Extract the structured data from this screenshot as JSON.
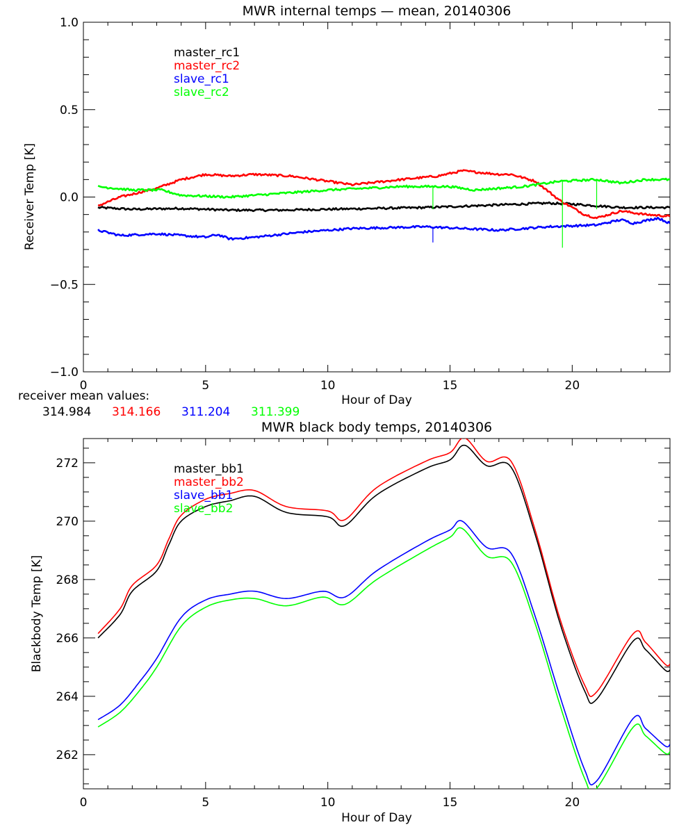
{
  "chart_data": [
    {
      "type": "line",
      "title": "MWR internal temps — mean, 20140306",
      "xlabel": "Hour of Day",
      "ylabel": "Receiver Temp [K]",
      "xlim": [
        0,
        24
      ],
      "ylim": [
        -1.0,
        1.0
      ],
      "xticks": [
        0,
        5,
        10,
        15,
        20
      ],
      "xtick_labels": [
        "0",
        "5",
        "10",
        "15",
        "20"
      ],
      "x_minor_step": 1,
      "yticks": [
        -1.0,
        -0.5,
        0.0,
        0.5,
        1.0
      ],
      "ytick_labels": [
        "−1.0",
        "−0.5",
        "0.0",
        "0.5",
        "1.0"
      ],
      "y_minor_step": 0.1,
      "grid": false,
      "legend_position": "top-left",
      "series": [
        {
          "name": "master_rc1",
          "color": "#000000",
          "x": [
            0.6,
            2,
            4,
            6,
            8,
            10,
            12,
            14,
            16,
            18,
            19,
            20,
            21,
            22,
            23,
            24
          ],
          "y": [
            -0.06,
            -0.07,
            -0.065,
            -0.075,
            -0.075,
            -0.07,
            -0.065,
            -0.06,
            -0.05,
            -0.04,
            -0.035,
            -0.04,
            -0.05,
            -0.06,
            -0.06,
            -0.06
          ]
        },
        {
          "name": "master_rc2",
          "color": "#ff0000",
          "x": [
            0.6,
            1.5,
            3,
            4,
            5,
            6,
            7,
            8.5,
            10.5,
            11,
            13,
            14.5,
            15.5,
            17,
            17.5,
            18.5,
            19.5,
            20.5,
            21,
            22,
            23,
            24
          ],
          "y": [
            -0.05,
            0.0,
            0.05,
            0.1,
            0.13,
            0.12,
            0.13,
            0.12,
            0.08,
            0.07,
            0.1,
            0.12,
            0.15,
            0.13,
            0.13,
            0.09,
            -0.02,
            -0.1,
            -0.12,
            -0.08,
            -0.1,
            -0.11
          ]
        },
        {
          "name": "slave_rc1",
          "color": "#0000ff",
          "x": [
            0.6,
            1.5,
            3,
            4,
            5,
            5.5,
            6,
            7,
            9,
            11,
            14,
            17,
            19,
            21,
            22,
            22.5,
            23.5,
            24
          ],
          "y": [
            -0.19,
            -0.22,
            -0.21,
            -0.22,
            -0.23,
            -0.215,
            -0.24,
            -0.23,
            -0.2,
            -0.18,
            -0.17,
            -0.19,
            -0.17,
            -0.16,
            -0.13,
            -0.15,
            -0.12,
            -0.15
          ]
        },
        {
          "name": "slave_rc2",
          "color": "#00ff00",
          "x": [
            0.6,
            2,
            3.2,
            4,
            6,
            8,
            10,
            13,
            15,
            16,
            18,
            19.5,
            21,
            22,
            23,
            24
          ],
          "y": [
            0.06,
            0.04,
            0.04,
            0.01,
            0.0,
            0.02,
            0.04,
            0.06,
            0.06,
            0.04,
            0.06,
            0.09,
            0.1,
            0.08,
            0.1,
            0.1
          ]
        }
      ],
      "spikes": [
        {
          "series": "slave_rc1",
          "x": 14.3,
          "y_from": -0.17,
          "y_to": -0.26
        },
        {
          "series": "slave_rc2",
          "x": 14.3,
          "y_from": 0.06,
          "y_to": -0.07
        },
        {
          "series": "slave_rc2",
          "x": 19.6,
          "y_from": 0.09,
          "y_to": -0.29
        },
        {
          "series": "slave_rc2",
          "x": 21.0,
          "y_from": 0.1,
          "y_to": -0.07
        }
      ],
      "annotation": {
        "label": "receiver mean values:",
        "values": [
          {
            "text": "314.984",
            "color": "#000000"
          },
          {
            "text": "314.166",
            "color": "#ff0000"
          },
          {
            "text": "311.204",
            "color": "#0000ff"
          },
          {
            "text": "311.399",
            "color": "#00ff00"
          }
        ]
      }
    },
    {
      "type": "line",
      "title": "MWR black body temps, 20140306",
      "xlabel": "Hour of Day",
      "ylabel": "Blackbody Temp [K]",
      "xlim": [
        0,
        24
      ],
      "ylim": [
        260.83,
        272.83
      ],
      "xticks": [
        0,
        5,
        10,
        15,
        20
      ],
      "xtick_labels": [
        "0",
        "5",
        "10",
        "15",
        "20"
      ],
      "x_minor_step": 1,
      "yticks": [
        262,
        264,
        266,
        268,
        270,
        272
      ],
      "ytick_labels": [
        "262",
        "264",
        "266",
        "268",
        "270",
        "272"
      ],
      "y_minor_step": 0.5,
      "grid": false,
      "legend_position": "top-left",
      "series": [
        {
          "name": "master_bb1",
          "color": "#000000",
          "x": [
            0.6,
            1.5,
            2,
            3,
            3.5,
            4,
            5,
            6,
            7,
            8.3,
            10,
            10.7,
            12,
            14,
            15,
            15.6,
            16.5,
            17.5,
            18.5,
            19.5,
            20.5,
            21,
            22.5,
            23,
            23.8,
            24
          ],
          "y": [
            266.0,
            266.8,
            267.6,
            268.3,
            269.2,
            270.0,
            270.5,
            270.7,
            270.85,
            270.3,
            270.15,
            269.85,
            270.9,
            271.8,
            272.1,
            272.6,
            271.9,
            271.85,
            269.5,
            266.5,
            264.2,
            263.9,
            265.9,
            265.6,
            264.9,
            264.9
          ]
        },
        {
          "name": "master_bb2",
          "color": "#ff0000",
          "x": [
            0.6,
            1.5,
            2,
            3,
            3.5,
            4,
            5,
            6,
            7,
            8.3,
            10,
            10.7,
            12,
            14,
            15,
            15.6,
            16.5,
            17.5,
            18.5,
            19.5,
            20.5,
            21,
            22.5,
            23,
            23.8,
            24
          ],
          "y": [
            266.15,
            267.0,
            267.8,
            268.5,
            269.4,
            270.2,
            270.75,
            270.95,
            271.05,
            270.5,
            270.35,
            270.05,
            271.15,
            272.05,
            272.35,
            272.85,
            272.05,
            272.05,
            269.65,
            266.65,
            264.4,
            264.15,
            266.15,
            265.85,
            265.1,
            265.1
          ]
        },
        {
          "name": "slave_bb1",
          "color": "#0000ff",
          "x": [
            0.6,
            1.5,
            2.3,
            3,
            4,
            5,
            6,
            7,
            8.3,
            9.8,
            10.7,
            12,
            14,
            15,
            15.5,
            16.5,
            17.5,
            18.5,
            19.5,
            20.5,
            21,
            22.5,
            23,
            23.8,
            24
          ],
          "y": [
            263.2,
            263.7,
            264.5,
            265.3,
            266.7,
            267.3,
            267.5,
            267.6,
            267.35,
            267.6,
            267.4,
            268.3,
            269.3,
            269.7,
            270.0,
            269.1,
            268.9,
            266.7,
            264.0,
            261.5,
            261.1,
            263.25,
            262.9,
            262.3,
            262.35
          ]
        },
        {
          "name": "slave_bb2",
          "color": "#00ff00",
          "x": [
            0.6,
            1.5,
            2.3,
            3,
            4,
            5,
            6,
            7,
            8.3,
            9.8,
            10.7,
            12,
            14,
            15,
            15.5,
            16.5,
            17.5,
            18.5,
            19.5,
            20.5,
            21,
            22.5,
            23,
            23.8,
            24
          ],
          "y": [
            262.95,
            263.45,
            264.2,
            265.0,
            266.4,
            267.05,
            267.3,
            267.35,
            267.1,
            267.4,
            267.15,
            268.0,
            269.0,
            269.45,
            269.75,
            268.8,
            268.6,
            266.45,
            263.7,
            261.2,
            260.85,
            262.95,
            262.65,
            262.05,
            262.1
          ]
        }
      ]
    }
  ]
}
